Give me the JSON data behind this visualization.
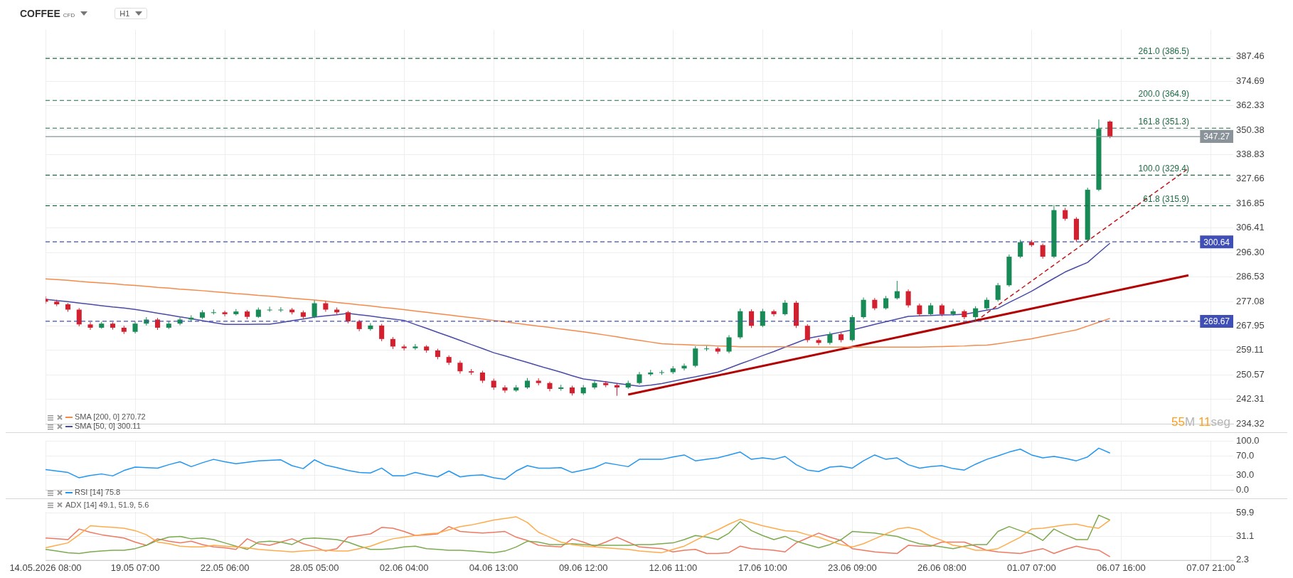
{
  "chart_data": [
    {
      "type": "candlestick",
      "title": "COFFEE",
      "subtitle": "CFD",
      "annotations": [
        "H1",
        "55M 11seg",
        {
          "text": "347.27",
          "y": 347.27
        },
        {
          "text": "300.64",
          "y": 300.64
        },
        {
          "text": "269.67",
          "y": 269.67
        }
      ],
      "categories": [
        null,
        null,
        null,
        null,
        null,
        null,
        null,
        null,
        null,
        null,
        null,
        null,
        null,
        null,
        null,
        null,
        null,
        null,
        null,
        null,
        null,
        null,
        null,
        null,
        null,
        null,
        null,
        null,
        null,
        null,
        null,
        null,
        null,
        null,
        null,
        null,
        null,
        null,
        null,
        null,
        null,
        null,
        null,
        null,
        null,
        null,
        null,
        null,
        null,
        null,
        null,
        null,
        null,
        null,
        null,
        null,
        null,
        null,
        null,
        null,
        null,
        null,
        null,
        null,
        null,
        null,
        null,
        null,
        null,
        null,
        null,
        null,
        null,
        null,
        null,
        null,
        null,
        null,
        null,
        null,
        null,
        null,
        null,
        null,
        null,
        null,
        null,
        null,
        null,
        null,
        null,
        null,
        null,
        null,
        null,
        null,
        null,
        null,
        null,
        null,
        null,
        null,
        null,
        null,
        null,
        null,
        null
      ],
      "ohlc": [
        [
          278,
          279,
          276.2,
          277
        ],
        [
          277,
          277.8,
          275.3,
          276
        ],
        [
          276,
          276.5,
          273.2,
          274
        ],
        [
          274,
          274.6,
          267.8,
          268.5
        ],
        [
          268.5,
          269.4,
          266.5,
          267.3
        ],
        [
          267.3,
          269.5,
          266.9,
          268.8
        ],
        [
          268.8,
          269.3,
          266.6,
          267.3
        ],
        [
          267.3,
          268,
          265,
          265.8
        ],
        [
          265.8,
          269.6,
          265.2,
          268.8
        ],
        [
          268.8,
          271.2,
          268.1,
          270.3
        ],
        [
          270.3,
          270.9,
          266.5,
          267.3
        ],
        [
          267.3,
          269.7,
          266.8,
          268.8
        ],
        [
          268.8,
          271,
          268.2,
          270.3
        ],
        [
          270.3,
          271.9,
          269.6,
          271
        ],
        [
          271,
          273.8,
          270.5,
          273
        ],
        [
          273,
          274.1,
          272.2,
          273
        ],
        [
          273,
          273.6,
          271.5,
          272.3
        ],
        [
          272.3,
          274.2,
          271.8,
          273.3
        ],
        [
          273.3,
          273.9,
          270.4,
          271.3
        ],
        [
          271.3,
          274.8,
          270.9,
          274
        ],
        [
          274,
          275.1,
          273.2,
          274
        ],
        [
          274,
          274.9,
          273.1,
          274
        ],
        [
          274,
          274.6,
          272.2,
          273
        ],
        [
          273,
          273.7,
          270.5,
          271.3
        ],
        [
          271.3,
          277.5,
          270.8,
          276.4
        ],
        [
          276.4,
          277.2,
          273.2,
          274
        ],
        [
          274,
          274.8,
          272.1,
          273
        ],
        [
          273,
          273.5,
          268.9,
          269.6
        ],
        [
          269.6,
          270.2,
          266,
          266.8
        ],
        [
          266.8,
          269,
          266.2,
          268.1
        ],
        [
          268.1,
          268.7,
          262.4,
          263.2
        ],
        [
          263.2,
          263.9,
          259.6,
          260.5
        ],
        [
          260.5,
          261.2,
          259.1,
          259.9
        ],
        [
          259.9,
          261.4,
          259.3,
          260.5
        ],
        [
          260.5,
          261,
          258.3,
          259.1
        ],
        [
          259.1,
          259.7,
          256,
          256.8
        ],
        [
          256.8,
          257.4,
          254,
          254.8
        ],
        [
          254.8,
          255.5,
          251,
          251.8
        ],
        [
          251.8,
          252.6,
          250.6,
          251.4
        ],
        [
          251.4,
          252,
          247.8,
          248.6
        ],
        [
          248.6,
          249.3,
          245.5,
          246.3
        ],
        [
          246.3,
          247,
          244.5,
          245.3
        ],
        [
          245.3,
          247.1,
          244.8,
          246.3
        ],
        [
          246.3,
          249.5,
          245.8,
          248.6
        ],
        [
          248.6,
          249.4,
          247,
          247.8
        ],
        [
          247.8,
          248.3,
          245,
          245.8
        ],
        [
          245.8,
          247.2,
          245.2,
          246.3
        ],
        [
          246.3,
          246.9,
          243.6,
          244.3
        ],
        [
          244.3,
          247.1,
          243.8,
          246.3
        ],
        [
          246.3,
          248.6,
          245.7,
          247.8
        ],
        [
          247.8,
          248.5,
          246.4,
          247.1
        ],
        [
          247.1,
          247.7,
          243.5,
          246.3
        ],
        [
          246.3,
          248.6,
          245.8,
          247.8
        ],
        [
          247.8,
          251.6,
          247.3,
          250.8
        ],
        [
          250.8,
          252.3,
          250.2,
          251.4
        ],
        [
          251.4,
          252.2,
          250.6,
          251.5
        ],
        [
          251.5,
          253.6,
          250.9,
          252.8
        ],
        [
          252.8,
          254.5,
          252.1,
          253.7
        ],
        [
          253.7,
          260.6,
          253.2,
          259.8
        ],
        [
          259.8,
          260.7,
          258.9,
          259.8
        ],
        [
          259.8,
          260.4,
          257.9,
          258.7
        ],
        [
          258.7,
          264.6,
          258.1,
          263.8
        ],
        [
          263.8,
          274.4,
          263.2,
          273.4
        ],
        [
          273.4,
          274.1,
          267.2,
          268
        ],
        [
          268,
          274.3,
          267.5,
          273.4
        ],
        [
          273.4,
          274,
          271.5,
          272.3
        ],
        [
          272.3,
          277.6,
          271.8,
          276.6
        ],
        [
          276.6,
          277.3,
          267.2,
          268
        ],
        [
          268,
          268.6,
          262,
          262.8
        ],
        [
          262.8,
          263.5,
          261,
          261.8
        ],
        [
          261.8,
          265.8,
          261.2,
          264.9
        ],
        [
          264.9,
          265.6,
          262,
          262.8
        ],
        [
          262.8,
          272,
          262.3,
          271.2
        ],
        [
          271.2,
          278.6,
          270.6,
          277.7
        ],
        [
          277.7,
          278.4,
          273.8,
          274.5
        ],
        [
          274.5,
          279.2,
          274,
          278.3
        ],
        [
          278.3,
          285,
          277.8,
          281
        ],
        [
          281,
          281.7,
          274.8,
          275.6
        ],
        [
          275.6,
          276.3,
          271.5,
          272.3
        ],
        [
          272.3,
          276.5,
          271.8,
          275.6
        ],
        [
          275.6,
          276.2,
          271.5,
          272.3
        ],
        [
          272.3,
          274.3,
          271.7,
          273.4
        ],
        [
          273.4,
          274,
          270.4,
          271.2
        ],
        [
          271.2,
          275.3,
          269.6,
          274.5
        ],
        [
          274.5,
          278.6,
          274,
          277.7
        ],
        [
          277.7,
          284.2,
          277.1,
          283.3
        ],
        [
          283.3,
          295.5,
          282.7,
          294.6
        ],
        [
          294.6,
          301.5,
          294,
          300.5
        ],
        [
          300.5,
          301.4,
          298.6,
          299.3
        ],
        [
          299.3,
          300,
          293.8,
          294.6
        ],
        [
          294.6,
          316.2,
          294,
          314
        ],
        [
          314,
          315,
          309.5,
          310.3
        ],
        [
          310.3,
          311,
          300.6,
          301.5
        ],
        [
          301.5,
          323.8,
          301,
          322.9
        ],
        [
          322.9,
          355.5,
          322.3,
          351
        ],
        [
          354.5,
          355,
          346.5,
          347.27
        ],
        null,
        null,
        null,
        null,
        null,
        null,
        null,
        null,
        null,
        null,
        null
      ],
      "series": [
        {
          "name": "SMA [200, 0] 270.72",
          "type": "line",
          "color": "#f5894a",
          "values": [
            285.8,
            285.5,
            285.2,
            284.8,
            284.5,
            284.2,
            283.9,
            283.5,
            283.2,
            282.9,
            282.5,
            282.2,
            281.8,
            281.5,
            281.2,
            280.8,
            280.5,
            280.1,
            279.8,
            279.4,
            279.1,
            278.7,
            278.3,
            278,
            277.6,
            277.2,
            276.7,
            276.3,
            275.8,
            275.4,
            274.9,
            274.5,
            274,
            273.5,
            273,
            272.5,
            272,
            271.5,
            271,
            270.5,
            270,
            269.5,
            268.9,
            268.4,
            267.9,
            267.4,
            266.8,
            266.3,
            265.8,
            265.2,
            264.6,
            264,
            263.3,
            262.7,
            262.1,
            261.5,
            261.3,
            261.2,
            261,
            260.9,
            260.7,
            260.6,
            260.4,
            260.4,
            260.4,
            260.4,
            260.4,
            260.3,
            260.3,
            260.3,
            260.3,
            260.3,
            260.3,
            260.3,
            260.3,
            260.3,
            260.3,
            260.3,
            260.3,
            260.4,
            260.5,
            260.6,
            260.7,
            260.9,
            261,
            261.5,
            262.1,
            262.7,
            263.3,
            264.1,
            264.9,
            265.7,
            266.5,
            267.9,
            269.3,
            270.72,
            null,
            null,
            null,
            null,
            null,
            null,
            null,
            null,
            null,
            null,
            null
          ]
        },
        {
          "name": "SMA [50, 0] 300.11",
          "type": "line",
          "color": "#4a4aa8",
          "values": [
            277.9,
            277.4,
            277,
            276.5,
            276,
            275.5,
            275,
            274.6,
            274.1,
            273.4,
            272.7,
            272,
            271.3,
            270.6,
            269.9,
            269.2,
            268.5,
            268.5,
            268.5,
            268.6,
            268.6,
            269.2,
            269.9,
            270.5,
            271.2,
            271.7,
            272.1,
            272.6,
            272.1,
            271.6,
            271,
            270.5,
            270,
            268.5,
            267.1,
            265.6,
            264.2,
            262.7,
            261.2,
            259.8,
            258.3,
            257.2,
            256,
            254.9,
            253.7,
            252.6,
            251.5,
            250.3,
            249.2,
            248.7,
            248.2,
            247.7,
            247.2,
            246.7,
            247.1,
            247.6,
            248.4,
            249.2,
            249.9,
            250.7,
            251.5,
            252.9,
            254.4,
            255.8,
            257.3,
            258.7,
            260.3,
            261.8,
            263.4,
            264.2,
            264.9,
            265.7,
            266.5,
            267.5,
            268.5,
            269.5,
            270.5,
            271.5,
            271.7,
            271.8,
            272,
            272.1,
            272.3,
            273,
            273.8,
            274.5,
            276.7,
            278.8,
            281,
            283.5,
            286,
            288.5,
            290.4,
            292.3,
            296.2,
            300.11,
            null,
            null,
            null,
            null,
            null,
            null,
            null,
            null,
            null,
            null,
            null
          ]
        },
        {
          "type": "line",
          "color": "#b30000",
          "line_style": "solid",
          "values": [
            null,
            null,
            null,
            null,
            null,
            null,
            null,
            null,
            null,
            null,
            null,
            null,
            null,
            null,
            null,
            null,
            null,
            null,
            null,
            null,
            null,
            null,
            null,
            null,
            null,
            null,
            null,
            null,
            null,
            null,
            null,
            null,
            null,
            null,
            null,
            null,
            null,
            null,
            null,
            null,
            null,
            null,
            null,
            null,
            null,
            null,
            null,
            null,
            null,
            null,
            null,
            null,
            243.9,
            null,
            null,
            null,
            null,
            null,
            null,
            null,
            null,
            null,
            null,
            null,
            null,
            null,
            null,
            null,
            null,
            null,
            null,
            null,
            null,
            null,
            null,
            null,
            null,
            null,
            null,
            null,
            null,
            null,
            null,
            null,
            null,
            null,
            null,
            null,
            null,
            null,
            null,
            null,
            null,
            null,
            null,
            null,
            null,
            null,
            null,
            null,
            null,
            null,
            287.2,
            null,
            null,
            null,
            null
          ]
        },
        {
          "type": "line",
          "color": "#c0161b",
          "line_style": "dashed",
          "values": [
            null,
            null,
            null,
            null,
            null,
            null,
            null,
            null,
            null,
            null,
            null,
            null,
            null,
            null,
            null,
            null,
            null,
            null,
            null,
            null,
            null,
            null,
            null,
            null,
            null,
            null,
            null,
            null,
            null,
            null,
            null,
            null,
            null,
            null,
            null,
            null,
            null,
            null,
            null,
            null,
            null,
            null,
            null,
            null,
            null,
            null,
            null,
            null,
            null,
            null,
            null,
            null,
            null,
            null,
            null,
            null,
            null,
            null,
            null,
            null,
            null,
            null,
            null,
            null,
            null,
            null,
            null,
            null,
            null,
            null,
            null,
            null,
            null,
            null,
            null,
            null,
            null,
            null,
            null,
            null,
            null,
            null,
            null,
            269.67,
            null,
            null,
            null,
            null,
            null,
            null,
            null,
            null,
            null,
            null,
            null,
            null,
            null,
            null,
            null,
            null,
            null,
            null,
            332.4,
            null,
            null,
            null,
            null
          ]
        }
      ],
      "ref_lines": [
        {
          "axis": "y",
          "value": 386.5,
          "label": "261.0 (386.5)",
          "color": "#1e6b45",
          "line_style": "dashed"
        },
        {
          "axis": "y",
          "value": 364.9,
          "label": "200.0 (364.9)",
          "color": "#1e6b45",
          "line_style": "dashed"
        },
        {
          "axis": "y",
          "value": 351.3,
          "label": "161.8 (351.3)",
          "color": "#1e6b45",
          "line_style": "dashed"
        },
        {
          "axis": "y",
          "value": 329.4,
          "label": "100.0 (329.4)",
          "color": "#1e6b45",
          "line_style": "dashed"
        },
        {
          "axis": "y",
          "value": 315.9,
          "label": "61.8 (315.9)",
          "color": "#1e6b45",
          "line_style": "dashed"
        },
        {
          "axis": "y",
          "value": 347.27,
          "color": "#8a9399",
          "line_style": "solid"
        },
        {
          "axis": "y",
          "value": 300.64,
          "color": "#3f4fb5",
          "line_style": "dashed"
        },
        {
          "axis": "y",
          "value": 269.67,
          "color": "#3f4fb5",
          "line_style": "dashed"
        }
      ],
      "ylim": [
        234.32,
        402
      ],
      "yticks": [
        387.46,
        374.69,
        362.33,
        350.38,
        338.83,
        327.66,
        316.85,
        306.41,
        {
          "value": 296.3,
          "label": "296.30"
        },
        286.53,
        277.08,
        267.95,
        259.11,
        250.57,
        242.31,
        234.32
      ],
      "log": true,
      "grid": true,
      "legend": "bottom left",
      "marker": "none",
      "tick_labels": "y"
    },
    {
      "type": "line",
      "categories": [
        null,
        null,
        null,
        null,
        null,
        null,
        null,
        null,
        null,
        null,
        null,
        null,
        null,
        null,
        null,
        null,
        null,
        null,
        null,
        null,
        null,
        null,
        null,
        null,
        null,
        null,
        null,
        null,
        null,
        null,
        null,
        null,
        null,
        null,
        null,
        null,
        null,
        null,
        null,
        null,
        null,
        null,
        null,
        null,
        null,
        null,
        null,
        null,
        null,
        null,
        null,
        null,
        null,
        null,
        null,
        null,
        null,
        null,
        null,
        null,
        null,
        null,
        null,
        null,
        null,
        null,
        null,
        null,
        null,
        null,
        null,
        null,
        null,
        null,
        null,
        null,
        null,
        null,
        null,
        null,
        null,
        null,
        null,
        null,
        null,
        null,
        null,
        null,
        null,
        null,
        null,
        null,
        null,
        null,
        null,
        null,
        null,
        null,
        null,
        null,
        null,
        null,
        null,
        null,
        null,
        null,
        null
      ],
      "series": [
        {
          "name": "RSI [14] 75.8",
          "color": "#2196f3",
          "values": [
            42,
            39,
            36,
            25,
            30,
            33,
            29,
            40,
            47,
            46,
            45,
            52,
            58,
            48,
            56,
            63,
            58,
            54,
            57,
            60,
            61,
            62,
            50,
            44,
            62,
            51,
            46,
            40,
            36,
            35,
            45,
            29,
            29,
            36,
            31,
            27,
            39,
            27,
            30,
            31,
            25,
            22,
            39,
            50,
            45,
            45,
            46,
            36,
            41,
            46,
            56,
            52,
            48,
            63,
            63,
            63,
            68,
            72,
            60,
            63,
            66,
            72,
            78,
            63,
            66,
            63,
            69,
            52,
            41,
            38,
            47,
            49,
            45,
            60,
            72,
            63,
            66,
            52,
            45,
            48,
            50,
            44,
            41,
            53,
            63,
            70,
            78,
            84,
            72,
            66,
            69,
            65,
            60,
            68,
            86,
            76,
            null,
            null,
            null,
            null,
            null,
            null,
            null,
            null,
            null,
            null,
            null
          ]
        }
      ],
      "ylim": [
        0,
        100
      ],
      "yticks": [
        {
          "value": 100,
          "label": "100.0"
        },
        {
          "value": 70,
          "label": "70.0"
        },
        {
          "value": 30,
          "label": "30.0"
        },
        {
          "value": 0,
          "label": "0.0"
        }
      ],
      "grid": true,
      "legend": "bottom left",
      "marker": "none",
      "tick_labels": "y"
    },
    {
      "type": "line",
      "annotations": [
        "ADX [14] 49.1, 51.9, 5.6"
      ],
      "categories": [
        "14.05.2026 08:00",
        null,
        null,
        null,
        null,
        null,
        null,
        null,
        "19.05 07:00",
        null,
        null,
        null,
        null,
        null,
        null,
        null,
        "22.05 06:00",
        null,
        null,
        null,
        null,
        null,
        null,
        null,
        "28.05 05:00",
        null,
        null,
        null,
        null,
        null,
        null,
        null,
        "02.06 04:00",
        null,
        null,
        null,
        null,
        null,
        null,
        null,
        "04.06 13:00",
        null,
        null,
        null,
        null,
        null,
        null,
        null,
        "09.06 12:00",
        null,
        null,
        null,
        null,
        null,
        null,
        null,
        "12.06 11:00",
        null,
        null,
        null,
        null,
        null,
        null,
        null,
        "17.06 10:00",
        null,
        null,
        null,
        null,
        null,
        null,
        null,
        "23.06 09:00",
        null,
        null,
        null,
        null,
        null,
        null,
        null,
        "26.06 08:00",
        null,
        null,
        null,
        null,
        null,
        null,
        null,
        "01.07 07:00",
        null,
        null,
        null,
        null,
        null,
        null,
        null,
        "06.07 16:00",
        null,
        null,
        null,
        null,
        null,
        null,
        null,
        "07.07 21:00",
        null,
        null
      ],
      "series": [
        {
          "color": "#ffab4a",
          "values": [
            17,
            20,
            23,
            33,
            44,
            43,
            42,
            41,
            38,
            33,
            24,
            22,
            19,
            18,
            18,
            20,
            19,
            18,
            17,
            15,
            14,
            13,
            12,
            13,
            14,
            14,
            13,
            13,
            16,
            19,
            24,
            28,
            30,
            32,
            34,
            35,
            39,
            43,
            45,
            48,
            51,
            53,
            55,
            48,
            36,
            30,
            24,
            21,
            19,
            18,
            17,
            16,
            15,
            13,
            12,
            11,
            15,
            19,
            26,
            33,
            39,
            46,
            52,
            48,
            44,
            41,
            38,
            37,
            33,
            30,
            25,
            21,
            18,
            22,
            28,
            34,
            40,
            42,
            39,
            31,
            26,
            20,
            18,
            14,
            14,
            16,
            23,
            30,
            40,
            41,
            43,
            45,
            46,
            43,
            41,
            51,
            null,
            null,
            null,
            null,
            null,
            null,
            null,
            null,
            null,
            null,
            null
          ]
        },
        {
          "color": "#7cab4e",
          "values": [
            15,
            13,
            11,
            10,
            12,
            13,
            14,
            14,
            16,
            20,
            26,
            30,
            31,
            28,
            29,
            27,
            23,
            19,
            15,
            24,
            25,
            24,
            21,
            28,
            29,
            28,
            27,
            24,
            19,
            15,
            15,
            16,
            18,
            19,
            16,
            15,
            14,
            14,
            13,
            12,
            11,
            13,
            18,
            25,
            24,
            21,
            21,
            22,
            21,
            20,
            20,
            20,
            20,
            21,
            21,
            22,
            23,
            27,
            32,
            30,
            27,
            35,
            49,
            38,
            32,
            27,
            31,
            25,
            21,
            17,
            21,
            27,
            37,
            36,
            35,
            33,
            31,
            26,
            22,
            20,
            18,
            16,
            19,
            21,
            21,
            37,
            43,
            38,
            34,
            26,
            40,
            33,
            27,
            27,
            57,
            51,
            null,
            null,
            null,
            null,
            null,
            null,
            null,
            null,
            null,
            null,
            null
          ]
        },
        {
          "color": "#f07860",
          "values": [
            29,
            28,
            27,
            40,
            36,
            33,
            31,
            29,
            24,
            20,
            28,
            25,
            23,
            25,
            21,
            18,
            17,
            15,
            28,
            22,
            20,
            24,
            28,
            22,
            18,
            13,
            16,
            30,
            32,
            34,
            42,
            41,
            37,
            32,
            33,
            34,
            43,
            37,
            36,
            35,
            36,
            37,
            30,
            26,
            20,
            19,
            18,
            28,
            24,
            19,
            24,
            30,
            24,
            18,
            17,
            16,
            12,
            14,
            15,
            10,
            10,
            11,
            19,
            16,
            15,
            14,
            12,
            23,
            29,
            35,
            30,
            26,
            16,
            14,
            12,
            11,
            10,
            20,
            19,
            19,
            24,
            24,
            24,
            19,
            14,
            12,
            11,
            10,
            13,
            16,
            10,
            15,
            19,
            16,
            14,
            6,
            null,
            null,
            null,
            null,
            null,
            null,
            null,
            null,
            null,
            null,
            null
          ]
        }
      ],
      "ylim": [
        1.4,
        61
      ],
      "yticks": [
        59.9,
        31.1,
        2.3
      ],
      "grid": true,
      "marker": "none"
    }
  ]
}
